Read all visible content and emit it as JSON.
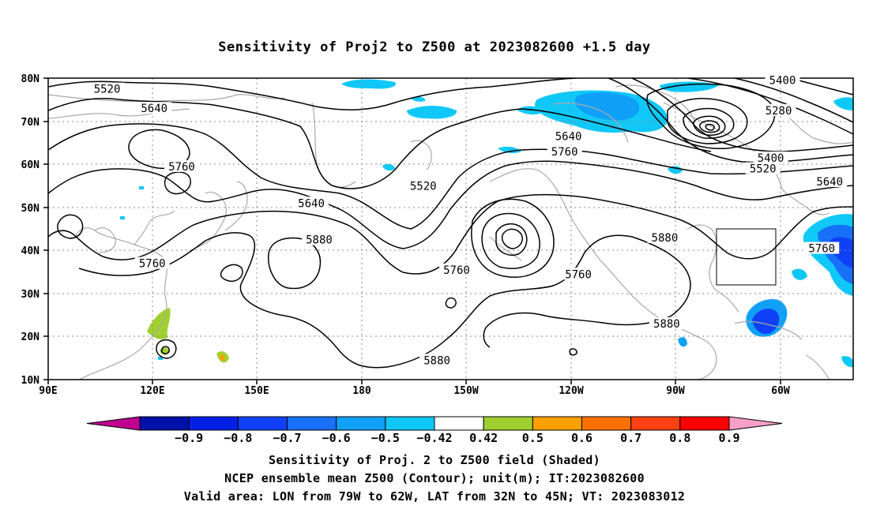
{
  "title": "Sensitivity of Proj2 to Z500 at 2023082600 +1.5 day",
  "lat_labels": [
    "80N",
    "70N",
    "60N",
    "50N",
    "40N",
    "30N",
    "20N",
    "10N"
  ],
  "lon_labels": [
    "90E",
    "120E",
    "150E",
    "180",
    "150W",
    "120W",
    "90W",
    "60W"
  ],
  "contour_labels": [
    {
      "text": "5520",
      "lon": 105,
      "lat": 77.5
    },
    {
      "text": "5640",
      "lon": 117,
      "lat": 73
    },
    {
      "text": "5760",
      "lon": 124,
      "lat": 59.5
    },
    {
      "text": "5640",
      "lon": 157,
      "lat": 51
    },
    {
      "text": "5760",
      "lon": 116.5,
      "lat": 37
    },
    {
      "text": "5880",
      "lon": 159,
      "lat": 42.5
    },
    {
      "text": "5520",
      "lon": -174.5,
      "lat": 55
    },
    {
      "text": "5760",
      "lon": -166,
      "lat": 35.5
    },
    {
      "text": "5640",
      "lon": -137.5,
      "lat": 66.5
    },
    {
      "text": "5760",
      "lon": -138.5,
      "lat": 63
    },
    {
      "text": "5760",
      "lon": -135,
      "lat": 34.5
    },
    {
      "text": "5880",
      "lon": -113,
      "lat": 43
    },
    {
      "text": "5880",
      "lon": -112.5,
      "lat": 23
    },
    {
      "text": "5880",
      "lon": -171,
      "lat": 14.5
    },
    {
      "text": "5400",
      "lon": -83,
      "lat": 79.5
    },
    {
      "text": "5280",
      "lon": -84,
      "lat": 72.5
    },
    {
      "text": "5400",
      "lon": -86,
      "lat": 61.5
    },
    {
      "text": "5520",
      "lon": -88,
      "lat": 59
    },
    {
      "text": "5640",
      "lon": -71,
      "lat": 56
    },
    {
      "text": "5760",
      "lon": -73,
      "lat": 40.5
    }
  ],
  "valid_box": {
    "lon_min": -79,
    "lon_max": -62,
    "lat_min": 32,
    "lat_max": 45
  },
  "colorbar": {
    "labels": [
      "−0.9",
      "−0.8",
      "−0.7",
      "−0.6",
      "−0.5",
      "−0.42",
      "0.42",
      "0.5",
      "0.6",
      "0.7",
      "0.8",
      "0.9"
    ],
    "colors": [
      "#c00090",
      "#0010a8",
      "#0020e8",
      "#1040f8",
      "#1870f8",
      "#10a0f8",
      "#10c8f8",
      "#ffffff",
      "#a0d030",
      "#ffa000",
      "#ff7000",
      "#ff4010",
      "#ff0000",
      "#f8a0c8"
    ]
  },
  "footer": {
    "line1": "Sensitivity of Proj. 2 to Z500 field (Shaded)",
    "line2": "NCEP ensemble mean Z500 (Contour); unit(m); IT:2023082600",
    "line3": "Valid area: LON from 79W to 62W, LAT from 32N to 45N; VT: 2023083012"
  }
}
